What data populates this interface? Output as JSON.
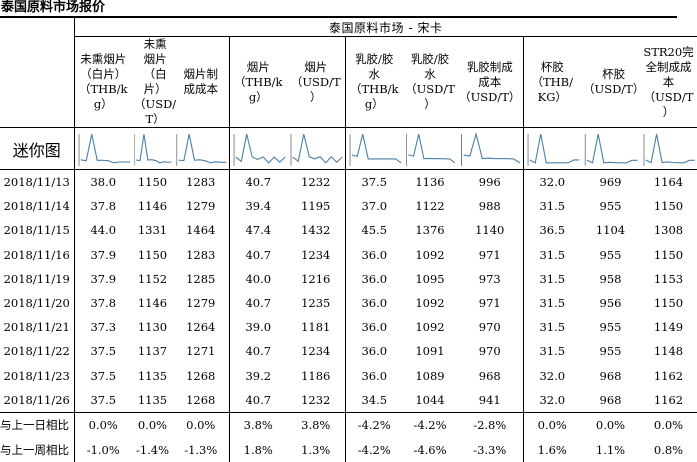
{
  "page_title": "泰国原料市场报价",
  "market_title": "泰国原料市场 - 宋卡",
  "row_labels": {
    "sparkline": "迷你图"
  },
  "columns": [
    {
      "key": "uss_thb",
      "header": "未熏烟片（白片）（THB/kg）"
    },
    {
      "key": "uss_usd",
      "header": "未熏烟片（白片）（USD/T）"
    },
    {
      "key": "rss_cost",
      "header": "烟片制成成本"
    },
    {
      "key": "rss_thb",
      "header": "烟片（THB/kg）"
    },
    {
      "key": "rss_usd",
      "header": "烟片（USD/T）"
    },
    {
      "key": "latex_thb",
      "header": "乳胶/胶水（THB/kg）"
    },
    {
      "key": "latex_usd",
      "header": "乳胶/胶水（USD/T）"
    },
    {
      "key": "latex_cost",
      "header": "乳胶制成成本（USD/T）"
    },
    {
      "key": "cup_thb",
      "header": "杯胶（THB/KG）"
    },
    {
      "key": "cup_usd",
      "header": "杯胶（USD/T）"
    },
    {
      "key": "str20_cost",
      "header": "STR20完全制成成本（USD/T）"
    }
  ],
  "header_lines": [
    [
      "未熏烟片",
      "（白片）",
      "（THB/k",
      "g）"
    ],
    [
      "未熏",
      "烟片",
      "（白",
      "片）",
      "（USD/",
      "T）"
    ],
    [
      "烟片制",
      "成成本"
    ],
    [
      "烟片",
      "（THB/k",
      "g）"
    ],
    [
      "烟片",
      "（USD/T",
      "）"
    ],
    [
      "乳胶/胶",
      "水",
      "（THB/k",
      "g）"
    ],
    [
      "乳胶/胶",
      "水",
      "（USD/T",
      "）"
    ],
    [
      "乳胶制成",
      "成本",
      "（USD/T）"
    ],
    [
      "杯胶",
      "（THB/",
      "KG）"
    ],
    [
      "杯胶",
      "（USD/T）"
    ],
    [
      "STR20完",
      "全制成成",
      "本",
      "（USD/T",
      "）"
    ]
  ],
  "rows": [
    {
      "date": "2018/11/13",
      "values": [
        "38.0",
        "1150",
        "1283",
        "40.7",
        "1232",
        "37.5",
        "1136",
        "996",
        "32.0",
        "969",
        "1164"
      ]
    },
    {
      "date": "2018/11/14",
      "values": [
        "37.8",
        "1146",
        "1279",
        "39.4",
        "1195",
        "37.0",
        "1122",
        "988",
        "31.5",
        "955",
        "1150"
      ]
    },
    {
      "date": "2018/11/15",
      "values": [
        "44.0",
        "1331",
        "1464",
        "47.4",
        "1432",
        "45.5",
        "1376",
        "1140",
        "36.5",
        "1104",
        "1308"
      ]
    },
    {
      "date": "2018/11/16",
      "values": [
        "37.9",
        "1150",
        "1283",
        "40.7",
        "1234",
        "36.0",
        "1092",
        "971",
        "31.5",
        "955",
        "1150"
      ]
    },
    {
      "date": "2018/11/19",
      "values": [
        "37.9",
        "1152",
        "1285",
        "40.0",
        "1216",
        "36.0",
        "1095",
        "973",
        "31.5",
        "958",
        "1153"
      ]
    },
    {
      "date": "2018/11/20",
      "values": [
        "37.8",
        "1146",
        "1279",
        "40.7",
        "1235",
        "36.0",
        "1092",
        "971",
        "31.5",
        "956",
        "1150"
      ]
    },
    {
      "date": "2018/11/21",
      "values": [
        "37.3",
        "1130",
        "1264",
        "39.0",
        "1181",
        "36.0",
        "1092",
        "970",
        "31.5",
        "955",
        "1149"
      ]
    },
    {
      "date": "2018/11/22",
      "values": [
        "37.5",
        "1137",
        "1271",
        "40.7",
        "1234",
        "36.0",
        "1091",
        "970",
        "31.5",
        "955",
        "1148"
      ]
    },
    {
      "date": "2018/11/23",
      "values": [
        "37.5",
        "1135",
        "1268",
        "39.2",
        "1186",
        "36.0",
        "1089",
        "968",
        "32.0",
        "968",
        "1162"
      ]
    },
    {
      "date": "2018/11/26",
      "values": [
        "37.5",
        "1135",
        "1268",
        "40.7",
        "1232",
        "34.5",
        "1044",
        "941",
        "32.0",
        "968",
        "1162"
      ]
    }
  ],
  "changes": [
    {
      "label": "与上一日相比",
      "values": [
        "0.0%",
        "0.0%",
        "0.0%",
        "3.8%",
        "3.8%",
        "-4.2%",
        "-4.2%",
        "-2.8%",
        "0.0%",
        "0.0%",
        "0.0%"
      ]
    },
    {
      "label": "与上一周相比",
      "values": [
        "-1.0%",
        "-1.4%",
        "-1.3%",
        "1.8%",
        "1.3%",
        "-4.2%",
        "-4.6%",
        "-3.3%",
        "1.6%",
        "1.1%",
        "0.8%"
      ]
    }
  ],
  "chart_data": {
    "type": "table",
    "title": "泰国原料市场 - 宋卡",
    "categories": [
      "2018/11/13",
      "2018/11/14",
      "2018/11/15",
      "2018/11/16",
      "2018/11/19",
      "2018/11/20",
      "2018/11/21",
      "2018/11/22",
      "2018/11/23",
      "2018/11/26"
    ],
    "series": [
      {
        "name": "未熏烟片（白片）（THB/kg）",
        "values": [
          38.0,
          37.8,
          44.0,
          37.9,
          37.9,
          37.8,
          37.3,
          37.5,
          37.5,
          37.5
        ]
      },
      {
        "name": "未熏烟片（白片）（USD/T）",
        "values": [
          1150,
          1146,
          1331,
          1150,
          1152,
          1146,
          1130,
          1137,
          1135,
          1135
        ]
      },
      {
        "name": "烟片制成成本",
        "values": [
          1283,
          1279,
          1464,
          1283,
          1285,
          1279,
          1264,
          1271,
          1268,
          1268
        ]
      },
      {
        "name": "烟片（THB/kg）",
        "values": [
          40.7,
          39.4,
          47.4,
          40.7,
          40.0,
          40.7,
          39.0,
          40.7,
          39.2,
          40.7
        ]
      },
      {
        "name": "烟片（USD/T）",
        "values": [
          1232,
          1195,
          1432,
          1234,
          1216,
          1235,
          1181,
          1234,
          1186,
          1232
        ]
      },
      {
        "name": "乳胶/胶水（THB/kg）",
        "values": [
          37.5,
          37.0,
          45.5,
          36.0,
          36.0,
          36.0,
          36.0,
          36.0,
          36.0,
          34.5
        ]
      },
      {
        "name": "乳胶/胶水（USD/T）",
        "values": [
          1136,
          1122,
          1376,
          1092,
          1095,
          1092,
          1092,
          1091,
          1089,
          1044
        ]
      },
      {
        "name": "乳胶制成成本（USD/T）",
        "values": [
          996,
          988,
          1140,
          971,
          973,
          971,
          970,
          970,
          968,
          941
        ]
      },
      {
        "name": "杯胶（THB/KG）",
        "values": [
          32.0,
          31.5,
          36.5,
          31.5,
          31.5,
          31.5,
          31.5,
          31.5,
          32.0,
          32.0
        ]
      },
      {
        "name": "杯胶（USD/T）",
        "values": [
          969,
          955,
          1104,
          955,
          958,
          956,
          955,
          955,
          968,
          968
        ]
      },
      {
        "name": "STR20完全制成成本（USD/T）",
        "values": [
          1164,
          1150,
          1308,
          1150,
          1153,
          1150,
          1149,
          1148,
          1162,
          1162
        ]
      }
    ]
  },
  "colors": {
    "sparkline": "#4a7fa8",
    "rule": "#000000"
  }
}
